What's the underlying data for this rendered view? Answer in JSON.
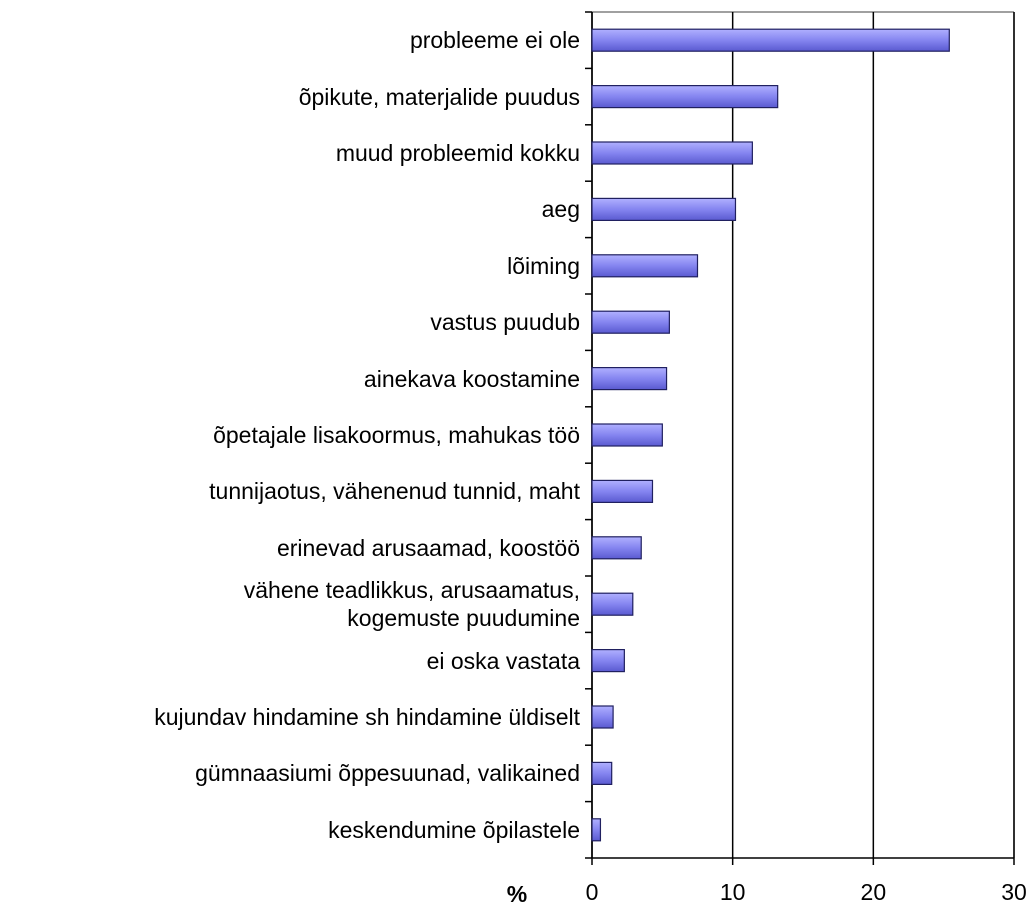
{
  "chart_data": {
    "type": "bar",
    "orientation": "horizontal",
    "x_label": "%",
    "categories": [
      "probleeme ei ole",
      "õpikute, materjalide puudus",
      "muud probleemid kokku",
      "aeg",
      "lõiming",
      "vastus puudub",
      "ainekava koostamine",
      "õpetajale lisakoormus, mahukas töö",
      "tunnijaotus, vähenenud tunnid, maht",
      "erinevad arusaamad, koostöö",
      "vähene teadlikkus, arusaamatus,\nkogemuste puudumine",
      "ei oska vastata",
      "kujundav hindamine sh hindamine üldiselt",
      "gümnaasiumi õppesuunad, valikained",
      "keskendumine õpilastele"
    ],
    "values": [
      25.4,
      13.2,
      11.4,
      10.2,
      7.5,
      5.5,
      5.3,
      5.0,
      4.3,
      3.5,
      2.9,
      2.3,
      1.5,
      1.4,
      0.6
    ],
    "color": "#8585f0",
    "xlim": [
      0,
      30
    ],
    "xticks": [
      0,
      10,
      20,
      30
    ],
    "grid": true
  }
}
